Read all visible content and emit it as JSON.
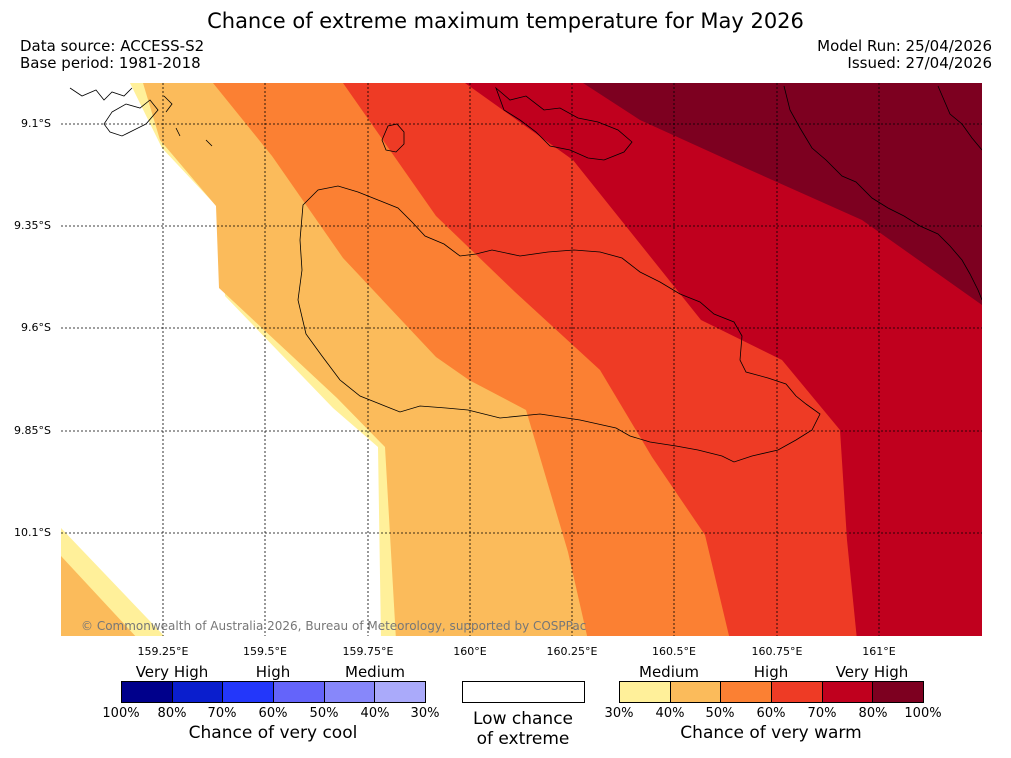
{
  "header": {
    "title": "Chance of extreme maximum temperature for May 2026",
    "data_source": "Data source: ACCESS-S2",
    "base_period": "Base period: 1981-2018",
    "model_run": "Model Run: 25/04/2026",
    "issued": "Issued: 27/04/2026"
  },
  "map": {
    "lat_labels": [
      "9.1°S",
      "9.35°S",
      "9.6°S",
      "9.85°S",
      "10.1°S"
    ],
    "lon_labels": [
      "159.25°E",
      "159.5°E",
      "159.75°E",
      "160°E",
      "160.25°E",
      "160.5°E",
      "160.75°E",
      "161°E"
    ],
    "copyright": "© Commonwealth of Australia 2026, Bureau of Meteorology, supported by COSPPac"
  },
  "legend": {
    "cool": {
      "categories": [
        "Very High",
        "High",
        "Medium"
      ],
      "colors": [
        "#00008b",
        "#0a1ecd",
        "#2337fa",
        "#6464fa",
        "#8787fa",
        "#aaaafa"
      ],
      "ticks": [
        "100%",
        "80%",
        "70%",
        "60%",
        "50%",
        "40%",
        "30%"
      ],
      "label": "Chance of very cool"
    },
    "low": {
      "line1": "Low chance",
      "line2": "of extreme"
    },
    "warm": {
      "categories": [
        "Medium",
        "High",
        "Very High"
      ],
      "colors": [
        "#fff09a",
        "#fbbb5b",
        "#fb8033",
        "#ee3b25",
        "#c0001e",
        "#7d0020"
      ],
      "ticks": [
        "30%",
        "40%",
        "50%",
        "60%",
        "70%",
        "80%",
        "100%"
      ],
      "label": "Chance of very warm"
    }
  }
}
